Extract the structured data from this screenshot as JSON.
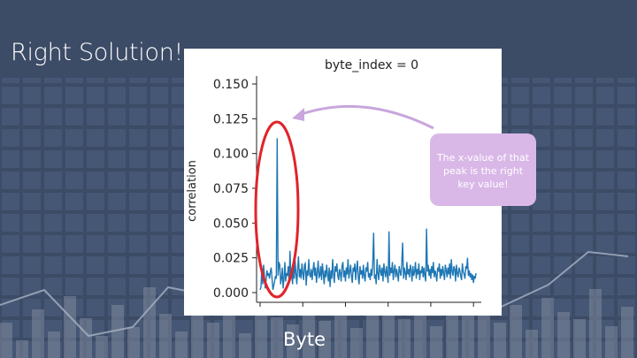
{
  "slide": {
    "title": "Right Solution!",
    "callout": "The x-value of that peak is the right key value!",
    "caption": "Byte"
  },
  "colors": {
    "background": "#3f4f6a",
    "line": "#1f77b4",
    "highlight": "#e0242a",
    "callout": "#d9b8e8",
    "arrow": "#c9a6dd"
  },
  "chart_data": {
    "type": "line",
    "title": "byte_index = 0",
    "xlabel": "",
    "ylabel": "correlation",
    "ylim": [
      0,
      0.15
    ],
    "yticks": [
      "0.000",
      "0.025",
      "0.050",
      "0.075",
      "0.100",
      "0.125",
      "0.150"
    ],
    "x_range": [
      0,
      255
    ],
    "grid": false,
    "series": [
      {
        "values": [
          0.002,
          0.004,
          0.018,
          0.006,
          0.02,
          0.013,
          0.003,
          0.009,
          0.016,
          0.012,
          0.014,
          0.01,
          0.015,
          0.018,
          0.01,
          0.002,
          0.005,
          0.008,
          0.012,
          0.01,
          0.111,
          0.012,
          0.022,
          0.02,
          0.006,
          0.01,
          0.018,
          0.003,
          0.01,
          0.022,
          0.008,
          0.014,
          0.012,
          0.019,
          0.007,
          0.03,
          0.012,
          0.013,
          0.006,
          0.02,
          0.01,
          0.023,
          0.014,
          0.006,
          0.017,
          0.026,
          0.011,
          0.017,
          0.01,
          0.021,
          0.014,
          0.009,
          0.02,
          0.021,
          0.005,
          0.016,
          0.012,
          0.024,
          0.013,
          0.011,
          0.017,
          0.009,
          0.016,
          0.022,
          0.012,
          0.018,
          0.007,
          0.014,
          0.023,
          0.011,
          0.012,
          0.019,
          0.009,
          0.021,
          0.014,
          0.006,
          0.016,
          0.011,
          0.02,
          0.013,
          0.008,
          0.018,
          0.004,
          0.016,
          0.01,
          0.024,
          0.013,
          0.007,
          0.019,
          0.015,
          0.021,
          0.012,
          0.009,
          0.017,
          0.014,
          0.008,
          0.019,
          0.022,
          0.011,
          0.016,
          0.008,
          0.018,
          0.013,
          0.024,
          0.01,
          0.015,
          0.02,
          0.012,
          0.007,
          0.018,
          0.015,
          0.021,
          0.009,
          0.017,
          0.023,
          0.011,
          0.006,
          0.019,
          0.013,
          0.016,
          0.01,
          0.02,
          0.012,
          0.008,
          0.018,
          0.015,
          0.022,
          0.011,
          0.014,
          0.009,
          0.017,
          0.012,
          0.021,
          0.043,
          0.01,
          0.013,
          0.006,
          0.024,
          0.014,
          0.009,
          0.02,
          0.016,
          0.012,
          0.018,
          0.008,
          0.021,
          0.015,
          0.011,
          0.019,
          0.013,
          0.007,
          0.044,
          0.012,
          0.018,
          0.014,
          0.022,
          0.009,
          0.016,
          0.02,
          0.011,
          0.017,
          0.013,
          0.008,
          0.019,
          0.015,
          0.012,
          0.021,
          0.036,
          0.01,
          0.018,
          0.014,
          0.009,
          0.022,
          0.013,
          0.017,
          0.011,
          0.02,
          0.016,
          0.008,
          0.019,
          0.012,
          0.015,
          0.022,
          0.01,
          0.017,
          0.013,
          0.021,
          0.009,
          0.016,
          0.014,
          0.019,
          0.011,
          0.018,
          0.012,
          0.008,
          0.046,
          0.015,
          0.02,
          0.012,
          0.017,
          0.01,
          0.019,
          0.014,
          0.022,
          0.011,
          0.016,
          0.013,
          0.008,
          0.018,
          0.015,
          0.021,
          0.01,
          0.017,
          0.012,
          0.019,
          0.014,
          0.009,
          0.02,
          0.016,
          0.011,
          0.018,
          0.013,
          0.021,
          0.01,
          0.024,
          0.015,
          0.012,
          0.019,
          0.017,
          0.008,
          0.02,
          0.014,
          0.011,
          0.018,
          0.016,
          0.012,
          0.009,
          0.021,
          0.015,
          0.013,
          0.01,
          0.019,
          0.017,
          0.025,
          0.012,
          0.016,
          0.011,
          0.014,
          0.009,
          0.013,
          0.007,
          0.012,
          0.01,
          0.014
        ]
      }
    ]
  }
}
